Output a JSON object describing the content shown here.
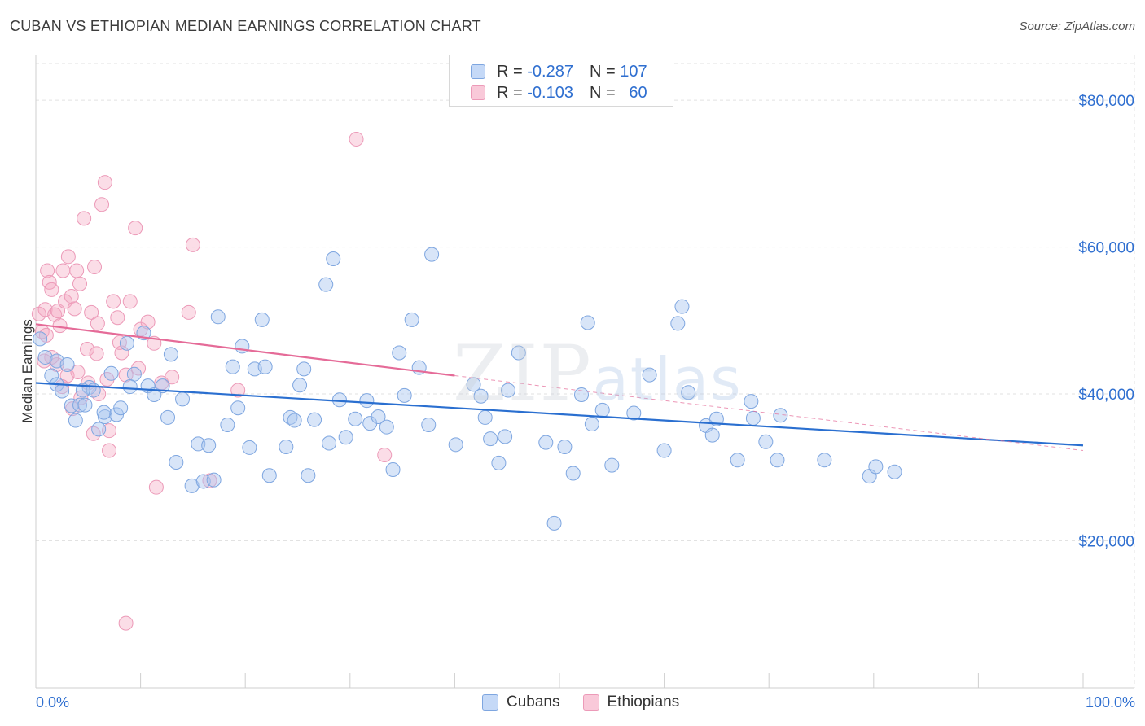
{
  "header": {
    "title": "CUBAN VS ETHIOPIAN MEDIAN EARNINGS CORRELATION CHART",
    "source": "Source: ZipAtlas.com"
  },
  "watermark": {
    "zip": "ZIP",
    "atlas": "atlas"
  },
  "legend_top": {
    "cubans": {
      "r_label": "R =",
      "r_value": "-0.287",
      "n_label": "N =",
      "n_value": "107"
    },
    "ethiopians": {
      "r_label": "R =",
      "r_value": "-0.103",
      "n_label": "N =",
      "n_value": "60"
    }
  },
  "legend_bottom": {
    "cubans": "Cubans",
    "ethiopians": "Ethiopians"
  },
  "colors": {
    "blue_fill": "rgba(168,198,240,0.45)",
    "blue_stroke": "#7ea6e0",
    "blue_line": "#2a6fd0",
    "pink_fill": "rgba(245,170,195,0.40)",
    "pink_stroke": "#ec9ab8",
    "pink_line": "#e56b98",
    "grid": "#e2e2e2",
    "axis_text": "#2f6fd0"
  },
  "chart_data": {
    "type": "scatter",
    "title": "CUBAN VS ETHIOPIAN MEDIAN EARNINGS CORRELATION CHART",
    "xlabel": "",
    "ylabel": "Median Earnings",
    "xlim": [
      0,
      100
    ],
    "ylim": [
      0,
      85000
    ],
    "x_tick_labels": {
      "left": "0.0%",
      "right": "100.0%"
    },
    "y_ticks": [
      {
        "value": 20000,
        "label": "$20,000"
      },
      {
        "value": 40000,
        "label": "$40,000"
      },
      {
        "value": 60000,
        "label": "$60,000"
      },
      {
        "value": 80000,
        "label": "$80,000"
      }
    ],
    "series": [
      {
        "name": "Cubans",
        "r": -0.287,
        "n": 107,
        "trend": {
          "x": [
            0,
            100
          ],
          "y": [
            41500,
            33000
          ]
        },
        "points": [
          [
            0.4,
            47500
          ],
          [
            0.9,
            45000
          ],
          [
            1.5,
            42500
          ],
          [
            2.0,
            41300
          ],
          [
            2.5,
            40400
          ],
          [
            3.4,
            38400
          ],
          [
            3.8,
            36400
          ],
          [
            4.2,
            38500
          ],
          [
            4.7,
            38500
          ],
          [
            5.1,
            40900
          ],
          [
            5.5,
            40500
          ],
          [
            6.0,
            35200
          ],
          [
            6.6,
            36900
          ],
          [
            7.2,
            42800
          ],
          [
            7.7,
            37200
          ],
          [
            8.1,
            38100
          ],
          [
            8.7,
            46900
          ],
          [
            9.4,
            42700
          ],
          [
            10.3,
            48300
          ],
          [
            10.7,
            41100
          ],
          [
            11.3,
            39900
          ],
          [
            12.1,
            41100
          ],
          [
            12.6,
            36800
          ],
          [
            12.9,
            45400
          ],
          [
            13.4,
            30700
          ],
          [
            14.0,
            39300
          ],
          [
            14.9,
            27500
          ],
          [
            15.5,
            33200
          ],
          [
            16.0,
            28100
          ],
          [
            16.5,
            33000
          ],
          [
            17.4,
            50500
          ],
          [
            18.3,
            35800
          ],
          [
            18.8,
            43700
          ],
          [
            19.3,
            38100
          ],
          [
            19.7,
            46500
          ],
          [
            20.4,
            32700
          ],
          [
            20.9,
            43400
          ],
          [
            21.6,
            50100
          ],
          [
            21.9,
            43700
          ],
          [
            22.3,
            28900
          ],
          [
            23.9,
            32800
          ],
          [
            24.3,
            36800
          ],
          [
            24.7,
            36400
          ],
          [
            25.2,
            41200
          ],
          [
            25.6,
            43400
          ],
          [
            26.0,
            28900
          ],
          [
            26.6,
            36500
          ],
          [
            27.7,
            54900
          ],
          [
            28.0,
            33300
          ],
          [
            28.4,
            58400
          ],
          [
            29.0,
            39200
          ],
          [
            29.6,
            34100
          ],
          [
            30.5,
            36600
          ],
          [
            31.6,
            39100
          ],
          [
            31.9,
            36000
          ],
          [
            32.7,
            36900
          ],
          [
            33.5,
            35500
          ],
          [
            34.1,
            29700
          ],
          [
            34.7,
            45600
          ],
          [
            35.2,
            39800
          ],
          [
            35.9,
            50100
          ],
          [
            36.6,
            43600
          ],
          [
            37.5,
            35800
          ],
          [
            37.8,
            59000
          ],
          [
            40.1,
            33100
          ],
          [
            41.8,
            41300
          ],
          [
            42.5,
            39700
          ],
          [
            42.9,
            36800
          ],
          [
            43.4,
            33900
          ],
          [
            44.2,
            30600
          ],
          [
            44.8,
            34200
          ],
          [
            45.1,
            40500
          ],
          [
            46.1,
            45600
          ],
          [
            48.7,
            33400
          ],
          [
            49.5,
            22400
          ],
          [
            50.5,
            32800
          ],
          [
            51.3,
            29200
          ],
          [
            52.1,
            39900
          ],
          [
            52.7,
            49700
          ],
          [
            53.1,
            35900
          ],
          [
            54.1,
            37800
          ],
          [
            55.0,
            30300
          ],
          [
            57.1,
            37400
          ],
          [
            58.6,
            42600
          ],
          [
            60.0,
            32300
          ],
          [
            61.3,
            49600
          ],
          [
            61.7,
            51900
          ],
          [
            62.3,
            40200
          ],
          [
            64.0,
            35700
          ],
          [
            64.6,
            34400
          ],
          [
            65.0,
            36600
          ],
          [
            67.0,
            31000
          ],
          [
            68.3,
            39000
          ],
          [
            68.5,
            36700
          ],
          [
            69.7,
            33500
          ],
          [
            70.8,
            31000
          ],
          [
            71.1,
            37100
          ],
          [
            75.3,
            31000
          ],
          [
            79.6,
            28800
          ],
          [
            80.2,
            30100
          ],
          [
            82.0,
            29400
          ],
          [
            2.0,
            44500
          ],
          [
            3.0,
            44000
          ],
          [
            4.5,
            40500
          ],
          [
            6.5,
            37500
          ],
          [
            9.0,
            41000
          ],
          [
            17.0,
            28300
          ]
        ]
      },
      {
        "name": "Ethiopians",
        "r": -0.103,
        "n": 60,
        "trend": {
          "x": [
            0,
            40
          ],
          "y": [
            49500,
            42500
          ]
        },
        "trend_dashed": {
          "x": [
            40,
            100
          ],
          "y": [
            42500,
            32300
          ]
        },
        "points": [
          [
            0.3,
            50900
          ],
          [
            0.6,
            48500
          ],
          [
            0.9,
            51500
          ],
          [
            1.1,
            56800
          ],
          [
            1.3,
            55200
          ],
          [
            1.5,
            54200
          ],
          [
            1.8,
            50800
          ],
          [
            2.1,
            51300
          ],
          [
            2.3,
            49300
          ],
          [
            2.6,
            56800
          ],
          [
            2.8,
            52600
          ],
          [
            3.1,
            58700
          ],
          [
            3.4,
            53300
          ],
          [
            3.7,
            51600
          ],
          [
            3.9,
            56800
          ],
          [
            4.2,
            55000
          ],
          [
            4.6,
            63900
          ],
          [
            4.9,
            46100
          ],
          [
            5.3,
            51100
          ],
          [
            5.6,
            57300
          ],
          [
            5.9,
            49600
          ],
          [
            6.3,
            65800
          ],
          [
            6.6,
            68800
          ],
          [
            7.0,
            35000
          ],
          [
            7.4,
            52600
          ],
          [
            7.8,
            50400
          ],
          [
            8.2,
            45600
          ],
          [
            8.6,
            42600
          ],
          [
            9.0,
            52600
          ],
          [
            9.5,
            62600
          ],
          [
            10.0,
            48800
          ],
          [
            10.7,
            49800
          ],
          [
            11.3,
            46900
          ],
          [
            12.0,
            41500
          ],
          [
            13.0,
            42300
          ],
          [
            14.6,
            51100
          ],
          [
            15.0,
            60300
          ],
          [
            16.6,
            28200
          ],
          [
            19.3,
            40500
          ],
          [
            30.6,
            74700
          ],
          [
            33.3,
            31700
          ],
          [
            11.5,
            27300
          ],
          [
            8.6,
            8800
          ],
          [
            1.0,
            48000
          ],
          [
            2.0,
            44000
          ],
          [
            3.0,
            42500
          ],
          [
            4.0,
            43000
          ],
          [
            5.0,
            41500
          ],
          [
            6.0,
            40000
          ],
          [
            5.5,
            34600
          ],
          [
            7.0,
            32300
          ],
          [
            1.5,
            45000
          ],
          [
            3.5,
            38000
          ],
          [
            6.8,
            42000
          ],
          [
            2.5,
            41000
          ],
          [
            0.8,
            44500
          ],
          [
            4.3,
            39500
          ],
          [
            5.8,
            45500
          ],
          [
            8.0,
            47000
          ],
          [
            9.8,
            43500
          ]
        ]
      }
    ]
  }
}
